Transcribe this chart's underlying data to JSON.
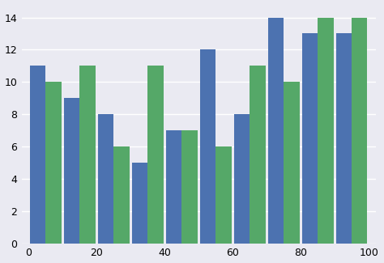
{
  "blue_values": [
    11,
    9,
    8,
    5,
    7,
    12,
    8,
    14,
    13,
    13
  ],
  "green_values": [
    10,
    11,
    6,
    11,
    7,
    6,
    11,
    10,
    14,
    14
  ],
  "bin_edges": [
    0,
    10,
    20,
    30,
    40,
    50,
    60,
    70,
    80,
    90,
    100
  ],
  "blue_color": "#4c72b0",
  "green_color": "#55a868",
  "xlim": [
    -2,
    102
  ],
  "ylim": [
    0,
    14.8
  ],
  "yticks": [
    0,
    2,
    4,
    6,
    8,
    10,
    12,
    14
  ],
  "xticks": [
    0,
    20,
    40,
    60,
    80,
    100
  ],
  "background_color": "#eaeaf2",
  "grid_color": "#ffffff",
  "figsize": [
    4.74,
    3.25
  ],
  "dpi": 100,
  "bar_gap": 0.08
}
